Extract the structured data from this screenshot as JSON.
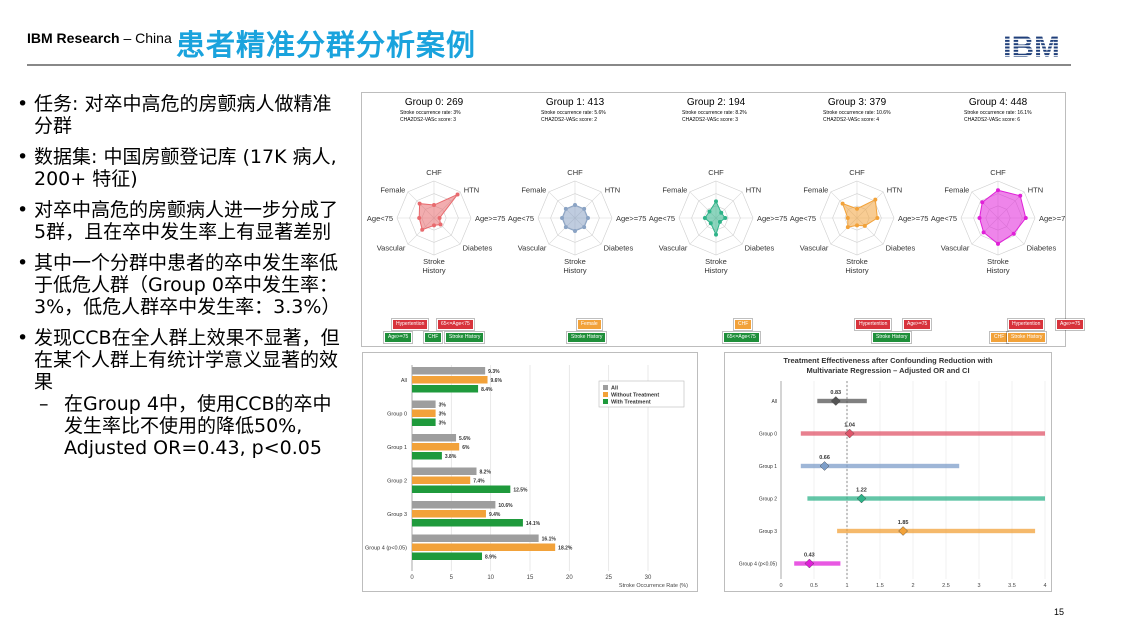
{
  "header": {
    "org_bold": "IBM Research",
    "org_rest": " – China",
    "title": "患者精准分群分析案例",
    "logo_text": "IBM",
    "page_number": "15"
  },
  "bullets": [
    "任务: 对卒中高危的房颤病人做精准分群",
    "数据集: 中国房颤登记库 (17K 病人, 200+ 特征)",
    "对卒中高危的房颤病人进一步分成了5群，且在卒中发生率上有显著差别",
    "其中一个分群中患者的卒中发生率低于低危人群（Group 0卒中发生率：3%，低危人群卒中发生率：3.3%）",
    "发现CCB在全人群上效果不显著，但在某个人群上有统计学意义显著的效果"
  ],
  "sub_bullets": [
    "在Group 4中，使用CCB的卒中发生率比不使用的降低50%, Adjusted OR=0.43, p<0.05"
  ],
  "radar_labels": {
    "chf": "CHF",
    "htn": "HTN",
    "female": "Female",
    "age_lt75": "Age<75",
    "age_ge75": "Age>=75",
    "vascular": "Vascular",
    "diabetes": "Diabetes",
    "stroke1": "Stroke",
    "stroke2": "History"
  },
  "groups": [
    {
      "title": "Group 0: 269",
      "rate": "Stroke occurrence rate: 3%",
      "score": "CHA2DS2-VASc score: 3",
      "color": "#e86a6e",
      "badges": [
        {
          "text": "Hypertention",
          "color": "red"
        },
        {
          "text": "65<=Age<75",
          "color": "red"
        },
        {
          "text": "Age>=75",
          "color": "green"
        },
        {
          "text": "CHF",
          "color": "green"
        },
        {
          "text": "Stroke History",
          "color": "green"
        }
      ]
    },
    {
      "title": "Group 1: 413",
      "rate": "Stroke occurrence rate: 5.6%",
      "score": "CHA2DS2-VASc score: 2",
      "color": "#8aa3c4",
      "badges": [
        {
          "text": "Female",
          "color": "orange"
        },
        {
          "text": "Stroke History",
          "color": "green"
        }
      ]
    },
    {
      "title": "Group 2: 194",
      "rate": "Stroke occurrence rate: 8.2%",
      "score": "CHA2DS2-VASc score: 3",
      "color": "#2fb389",
      "badges": [
        {
          "text": "CHF",
          "color": "orange"
        },
        {
          "text": "65<=Age<75",
          "color": "green"
        }
      ]
    },
    {
      "title": "Group 3: 379",
      "rate": "Stroke occurrence rate: 10.6%",
      "score": "CHA2DS2-VASc score: 4",
      "color": "#f2a23a",
      "badges": [
        {
          "text": "Hypertention",
          "color": "red"
        },
        {
          "text": "Age>=75",
          "color": "red"
        },
        {
          "text": "Stroke History",
          "color": "green"
        }
      ]
    },
    {
      "title": "Group 4: 448",
      "rate": "Stroke occurrence rate: 16.1%",
      "score": "CHA2DS2-VASc score: 6",
      "color": "#e020d8",
      "badges": [
        {
          "text": "Hypertention",
          "color": "red"
        },
        {
          "text": "Age>=75",
          "color": "red"
        },
        {
          "text": "CHF",
          "color": "orange"
        },
        {
          "text": "Stroke History",
          "color": "orange"
        }
      ]
    }
  ],
  "chart_data": [
    {
      "type": "bar",
      "orientation": "horizontal",
      "categories": [
        "All",
        "Group 0",
        "Group 1",
        "Group 2",
        "Group 3",
        "Group 4 (p<0.05)"
      ],
      "series": [
        {
          "name": "All",
          "color": "#9e9e9e",
          "values": [
            9.3,
            3,
            5.6,
            8.2,
            10.6,
            16.1
          ],
          "labels": [
            "9.3%",
            "3%",
            "5.6%",
            "8.2%",
            "10.6%",
            "16.1%"
          ]
        },
        {
          "name": "Without Treatment",
          "color": "#f2a23a",
          "values": [
            9.6,
            3,
            6,
            7.4,
            9.4,
            18.2
          ],
          "labels": [
            "9.6%",
            "3%",
            "6%",
            "7.4%",
            "9.4%",
            "18.2%"
          ]
        },
        {
          "name": "With Treatment",
          "color": "#1f9a3c",
          "values": [
            8.4,
            3,
            3.8,
            12.5,
            14.1,
            8.9
          ],
          "labels": [
            "8.4%",
            "3%",
            "3.8%",
            "12.5%",
            "14.1%",
            "8.9%"
          ]
        }
      ],
      "xlim": [
        0,
        30
      ],
      "xticks": [
        "0",
        "5",
        "10",
        "15",
        "20",
        "25",
        "30"
      ],
      "xlabel": "Stroke Occurrence Rate (%)",
      "legend": "top-right"
    },
    {
      "type": "scatter",
      "subtype": "forest",
      "title": "Treatment Effectiveness after Confounding Reduction with Multivariate Regression – Adjusted OR and CI",
      "categories": [
        "All",
        "Group 0",
        "Group 1",
        "Group 2",
        "Group 3",
        "Group 4 (p<0.05)"
      ],
      "or": [
        0.83,
        1.04,
        0.66,
        1.22,
        1.85,
        0.43
      ],
      "labels": [
        "0.83",
        "1.04",
        "0.66",
        "1.22",
        "1.85",
        "0.43"
      ],
      "ci": [
        [
          0.55,
          1.3
        ],
        [
          0.3,
          4.0
        ],
        [
          0.3,
          2.7
        ],
        [
          0.4,
          4.0
        ],
        [
          0.85,
          3.85
        ],
        [
          0.2,
          0.9
        ]
      ],
      "colors": [
        "#555555",
        "#e0556a",
        "#7d9ec9",
        "#2fb389",
        "#f2a23a",
        "#e020d8"
      ],
      "xlim": [
        0,
        4
      ],
      "xticks": [
        "0",
        "0.5",
        "1",
        "1.5",
        "2",
        "2.5",
        "3",
        "3.5",
        "4"
      ]
    }
  ]
}
